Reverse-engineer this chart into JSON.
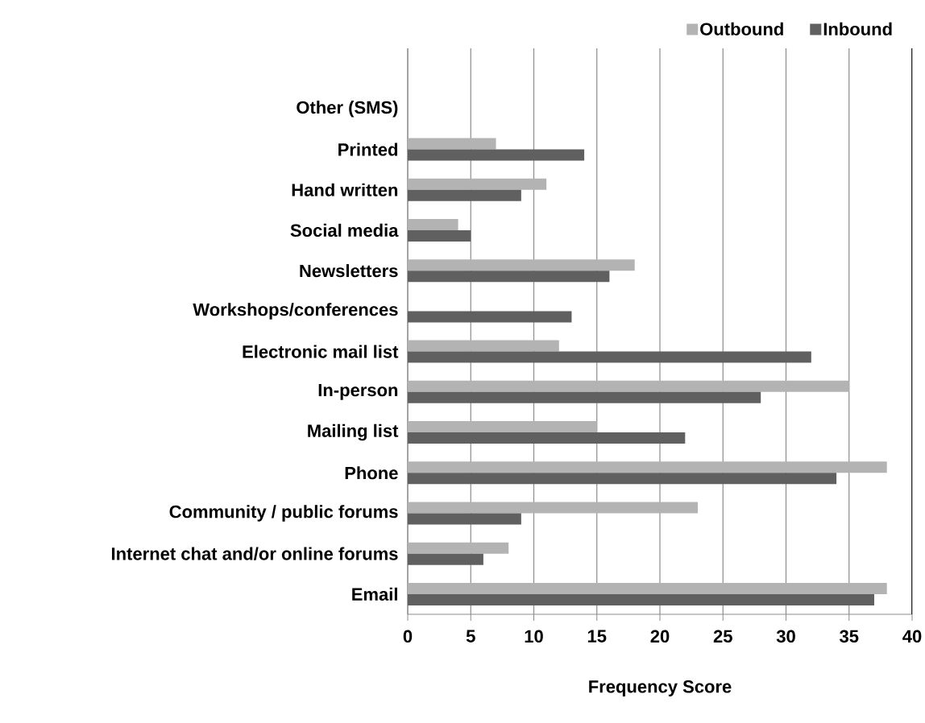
{
  "chart_data": {
    "type": "bar",
    "orientation": "horizontal",
    "xlabel": "Frequency Score",
    "categories": [
      null,
      "Other (SMS)",
      "Printed",
      "Hand written",
      "Social media",
      "Newsletters",
      "Workshops/conferences",
      "Electronic mail list",
      "In-person",
      "Mailing list",
      "Phone",
      "Community / public forums",
      "Internet chat and/or online forums",
      "Email"
    ],
    "series": [
      {
        "name": "Outbound",
        "color": "#b3b3b3",
        "values": [
          null,
          null,
          7,
          11,
          4,
          18,
          null,
          12,
          35,
          15,
          38,
          23,
          8,
          38
        ]
      },
      {
        "name": "Inbound",
        "color": "#606060",
        "values": [
          null,
          null,
          14,
          9,
          5,
          16,
          13,
          32,
          28,
          22,
          34,
          9,
          6,
          37
        ]
      }
    ],
    "xlim": [
      0,
      40
    ],
    "xticks": [
      0,
      5,
      10,
      15,
      20,
      25,
      30,
      35,
      40
    ],
    "grid": "x",
    "legend": "top right"
  }
}
